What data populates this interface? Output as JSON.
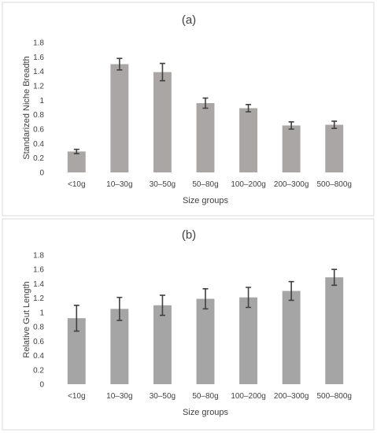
{
  "chart_data": [
    {
      "type": "bar",
      "title": "(a)",
      "xlabel": "Size groups",
      "ylabel": "Standarized Niche Breadth",
      "categories": [
        "<10g",
        "10–30g",
        "30–50g",
        "50–80g",
        "100–200g",
        "200–300g",
        "500–800g"
      ],
      "values": [
        0.29,
        1.5,
        1.39,
        0.96,
        0.89,
        0.65,
        0.66
      ],
      "errors": [
        0.03,
        0.08,
        0.12,
        0.07,
        0.05,
        0.05,
        0.05
      ],
      "ylim": [
        0,
        1.8
      ],
      "yticks": [
        "0",
        "0.2",
        "0.4",
        "0.6",
        "0.8",
        "1",
        "1.2",
        "1.4",
        "1.6",
        "1.8"
      ],
      "bar_color": "#aaa6a5",
      "grid": false
    },
    {
      "type": "bar",
      "title": "(b)",
      "xlabel": "Size groups",
      "ylabel": "Relative Gut Length",
      "categories": [
        "<10g",
        "10–30g",
        "30–50g",
        "50–80g",
        "100–200g",
        "200–300g",
        "500–800g"
      ],
      "values": [
        0.92,
        1.05,
        1.1,
        1.19,
        1.21,
        1.3,
        1.49
      ],
      "errors": [
        0.18,
        0.16,
        0.14,
        0.14,
        0.14,
        0.13,
        0.11
      ],
      "ylim": [
        0,
        1.8
      ],
      "yticks": [
        "0",
        "0.2",
        "0.4",
        "0.6",
        "0.8",
        "1",
        "1.2",
        "1.4",
        "1.6",
        "1.8"
      ],
      "bar_color": "#a5a5a5",
      "grid": false
    }
  ]
}
